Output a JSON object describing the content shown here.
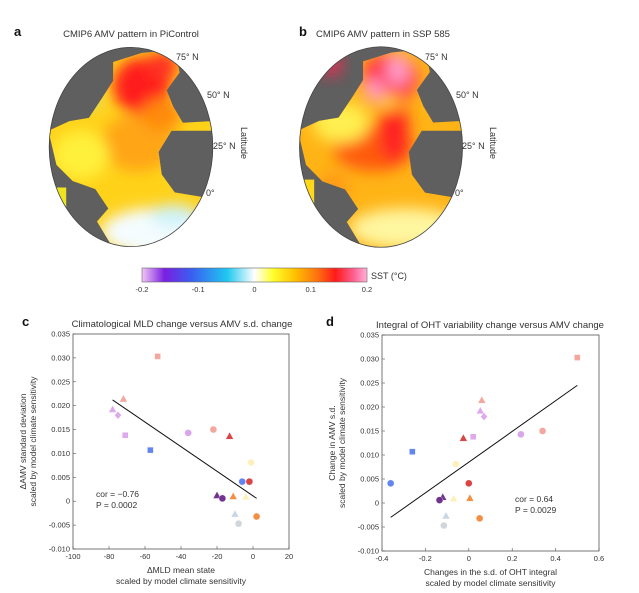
{
  "panels": {
    "a": {
      "letter": "a",
      "title": "CMIP6 AMV pattern in PiControl"
    },
    "b": {
      "letter": "b",
      "title": "CMIP6 AMV pattern in SSP 585"
    },
    "c": {
      "letter": "c"
    },
    "d": {
      "letter": "d"
    }
  },
  "map_labels": {
    "lat75": "75° N",
    "lat50": "50° N",
    "lat25": "25° N",
    "lat0": "0°",
    "axis": "Latitude"
  },
  "colorbar": {
    "label": "SST (°C)",
    "ticks": [
      "-0.2",
      "-0.1",
      "0",
      "0.1",
      "0.2"
    ],
    "range": [
      -0.2,
      0.2
    ],
    "colors": [
      "#f2c6f5",
      "#7a1fe0",
      "#3a5ef0",
      "#20c8f0",
      "#ffffff",
      "#ffff30",
      "#ffc000",
      "#ff7010",
      "#ff1a1a",
      "#ff5f8f",
      "#ffb0d8"
    ]
  },
  "chart_data": [
    {
      "type": "scatter",
      "title": "Climatological MLD change versus AMV s.d. change",
      "xlabel": "ΔMLD mean state",
      "xlabel2": "scaled by model climate sensitivity",
      "ylabel": "ΔAMV standard deviation",
      "ylabel2": "scaled by model climate sensitivity",
      "xlim": [
        -100,
        20
      ],
      "ylim": [
        -0.01,
        0.035
      ],
      "xticks": [
        "-100",
        "-80",
        "-60",
        "-40",
        "-20",
        "0",
        "20"
      ],
      "yticks": [
        "-0.010",
        "-0.005",
        "0",
        "0.005",
        "0.010",
        "0.015",
        "0.020",
        "0.025",
        "0.030",
        "0.035"
      ],
      "annotation": {
        "cor": "cor = −0.76",
        "p": "P = 0.0002"
      },
      "fit_line": [
        [
          -78,
          0.0212
        ],
        [
          2,
          0.0006
        ]
      ],
      "points": [
        {
          "x": -53,
          "y": 0.0303,
          "marker": "square",
          "color": "#f4a39a"
        },
        {
          "x": -72,
          "y": 0.0214,
          "marker": "triangle",
          "color": "#f4a39a"
        },
        {
          "x": -78,
          "y": 0.0192,
          "marker": "triangle",
          "color": "#dca6ec"
        },
        {
          "x": -75,
          "y": 0.018,
          "marker": "diamond",
          "color": "#dca6ec"
        },
        {
          "x": -71,
          "y": 0.0138,
          "marker": "square",
          "color": "#dca6ec"
        },
        {
          "x": -57,
          "y": 0.0107,
          "marker": "square",
          "color": "#5a7ff0"
        },
        {
          "x": -36,
          "y": 0.0143,
          "marker": "circle",
          "color": "#d6a2e8"
        },
        {
          "x": -22,
          "y": 0.015,
          "marker": "circle",
          "color": "#f4a39a"
        },
        {
          "x": -13,
          "y": 0.0136,
          "marker": "triangle",
          "color": "#d83a3a"
        },
        {
          "x": -1,
          "y": 0.0081,
          "marker": "circle",
          "color": "#fdf0b8"
        },
        {
          "x": -6,
          "y": 0.0041,
          "marker": "circle",
          "color": "#5a7ff0"
        },
        {
          "x": -2,
          "y": 0.0041,
          "marker": "circle",
          "color": "#d83a3a"
        },
        {
          "x": -20,
          "y": 0.0012,
          "marker": "triangle",
          "color": "#6a2a8a"
        },
        {
          "x": -17,
          "y": 0.0006,
          "marker": "circle",
          "color": "#6a2a8a"
        },
        {
          "x": -11,
          "y": 0.001,
          "marker": "triangle",
          "color": "#f28a3a"
        },
        {
          "x": -4,
          "y": 0.0009,
          "marker": "triangle",
          "color": "#fdf0b8"
        },
        {
          "x": -10,
          "y": -0.0027,
          "marker": "triangle",
          "color": "#c8d4e4"
        },
        {
          "x": -8,
          "y": -0.0047,
          "marker": "circle",
          "color": "#cfd4dc"
        },
        {
          "x": 2,
          "y": -0.0032,
          "marker": "circle",
          "color": "#f28a3a"
        }
      ]
    },
    {
      "type": "scatter",
      "title": "Integral of OHT variability change versus AMV change",
      "xlabel": "Changes in the s.d. of OHT integral",
      "xlabel2": "scaled by model climate sensitivity",
      "ylabel": "Change in AMV s.d.",
      "ylabel2": "scaled by model climate sensitivity",
      "xlim": [
        -0.4,
        0.6
      ],
      "ylim": [
        -0.01,
        0.035
      ],
      "xticks": [
        "-0.4",
        "-0.2",
        "0",
        "0.2",
        "0.4",
        "0.6"
      ],
      "yticks": [
        "-0.010",
        "-0.005",
        "0",
        "0.005",
        "0.010",
        "0.015",
        "0.020",
        "0.025",
        "0.030",
        "0.035"
      ],
      "annotation": {
        "cor": "cor = 0.64",
        "p": "P = 0.0029"
      },
      "fit_line": [
        [
          -0.36,
          -0.003
        ],
        [
          0.5,
          0.0245
        ]
      ],
      "points": [
        {
          "x": 0.5,
          "y": 0.0303,
          "marker": "square",
          "color": "#f4a39a"
        },
        {
          "x": 0.06,
          "y": 0.0214,
          "marker": "triangle",
          "color": "#f4a39a"
        },
        {
          "x": 0.053,
          "y": 0.0192,
          "marker": "triangle",
          "color": "#dca6ec"
        },
        {
          "x": 0.07,
          "y": 0.018,
          "marker": "diamond",
          "color": "#dca6ec"
        },
        {
          "x": 0.02,
          "y": 0.0138,
          "marker": "square",
          "color": "#dca6ec"
        },
        {
          "x": -0.26,
          "y": 0.0107,
          "marker": "square",
          "color": "#5a7ff0"
        },
        {
          "x": 0.24,
          "y": 0.0143,
          "marker": "circle",
          "color": "#d6a2e8"
        },
        {
          "x": 0.34,
          "y": 0.015,
          "marker": "circle",
          "color": "#f4a39a"
        },
        {
          "x": -0.025,
          "y": 0.0135,
          "marker": "triangle",
          "color": "#d83a3a"
        },
        {
          "x": -0.06,
          "y": 0.0081,
          "marker": "circle",
          "color": "#fdf0b8"
        },
        {
          "x": -0.36,
          "y": 0.0041,
          "marker": "circle",
          "color": "#5a7ff0"
        },
        {
          "x": 0.0,
          "y": 0.0041,
          "marker": "circle",
          "color": "#d83a3a"
        },
        {
          "x": -0.12,
          "y": 0.0012,
          "marker": "triangle",
          "color": "#6a2a8a"
        },
        {
          "x": -0.135,
          "y": 0.0006,
          "marker": "circle",
          "color": "#6a2a8a"
        },
        {
          "x": 0.005,
          "y": 0.001,
          "marker": "triangle",
          "color": "#f28a3a"
        },
        {
          "x": -0.07,
          "y": 0.0009,
          "marker": "triangle",
          "color": "#fdf0b8"
        },
        {
          "x": -0.105,
          "y": -0.0027,
          "marker": "triangle",
          "color": "#c8d4e4"
        },
        {
          "x": -0.115,
          "y": -0.0047,
          "marker": "circle",
          "color": "#cfd4dc"
        },
        {
          "x": 0.05,
          "y": -0.0032,
          "marker": "circle",
          "color": "#f28a3a"
        }
      ]
    }
  ]
}
